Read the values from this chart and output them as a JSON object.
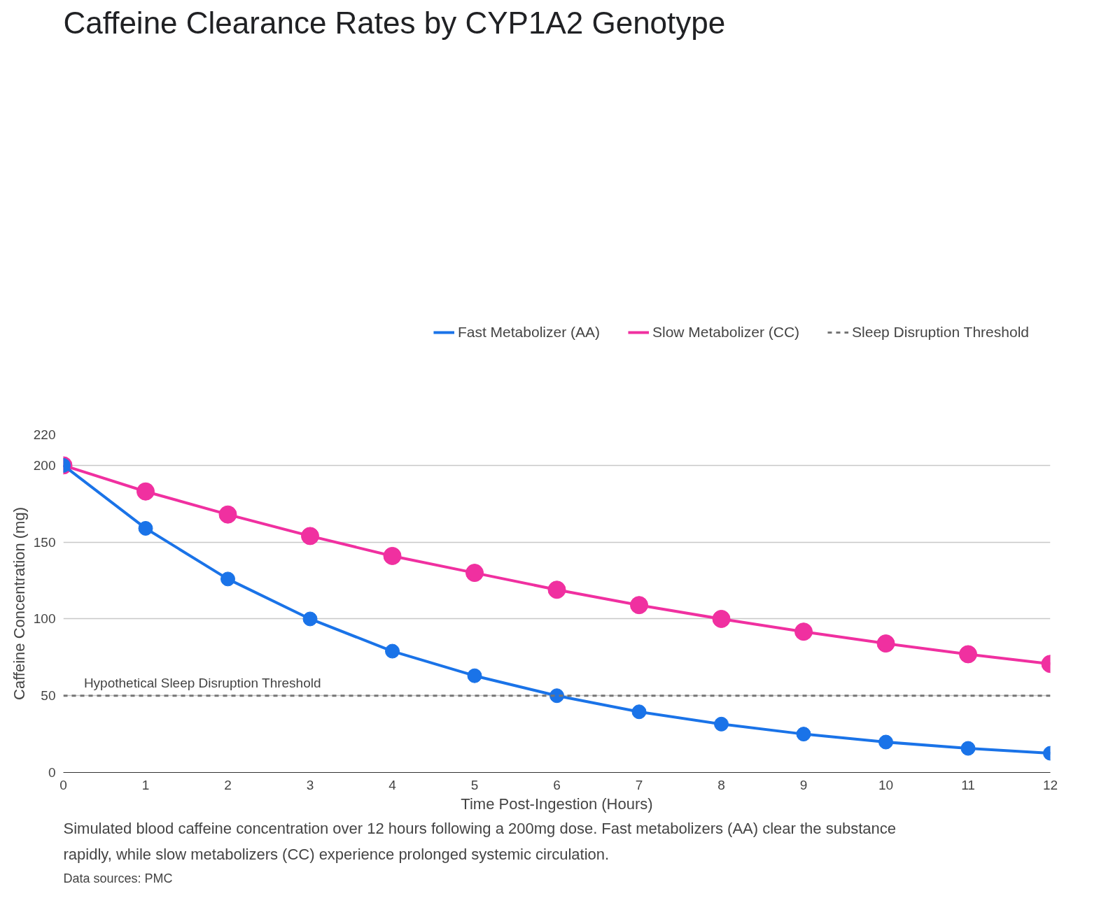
{
  "chart_data": {
    "type": "line",
    "title": "Caffeine Clearance Rates by CYP1A2 Genotype",
    "xlabel": "Time Post-Ingestion (Hours)",
    "ylabel": "Caffeine Concentration (mg)",
    "x": [
      0,
      1,
      2,
      3,
      4,
      5,
      6,
      7,
      8,
      9,
      10,
      11,
      12
    ],
    "series": [
      {
        "name": "Fast Metabolizer (AA)",
        "color": "#1a73e8",
        "values": [
          200,
          159,
          126,
          100,
          79,
          63,
          50,
          39.5,
          31.5,
          25,
          19.8,
          15.7,
          12.5
        ]
      },
      {
        "name": "Slow Metabolizer (CC)",
        "color": "#f030a0",
        "values": [
          200,
          183,
          168,
          154,
          141,
          130,
          119,
          109,
          100,
          91.7,
          84,
          77,
          70.7
        ]
      }
    ],
    "ref_lines": [
      {
        "axis": "y",
        "value": 50,
        "label": "Sleep Disruption Threshold",
        "color": "#757575",
        "line_style": "dashed"
      }
    ],
    "annotations": [
      {
        "text": "Hypothetical Sleep Disruption Threshold",
        "x": 0.25,
        "y": 50
      },
      "Simulated blood caffeine concentration over 12 hours following a 200mg dose. Fast metabolizers (AA) clear the substance rapidly, while slow metabolizers (CC) experience prolonged systemic circulation.",
      "Data sources: PMC"
    ],
    "xlim": [
      0,
      12
    ],
    "ylim": [
      0,
      220
    ],
    "xticks": [
      0,
      1,
      2,
      3,
      4,
      5,
      6,
      7,
      8,
      9,
      10,
      11,
      12
    ],
    "yticks": [
      0,
      50,
      100,
      150,
      200,
      220
    ],
    "grid": "y",
    "legend": "top right",
    "marker": "circle",
    "line_style": "solid"
  }
}
